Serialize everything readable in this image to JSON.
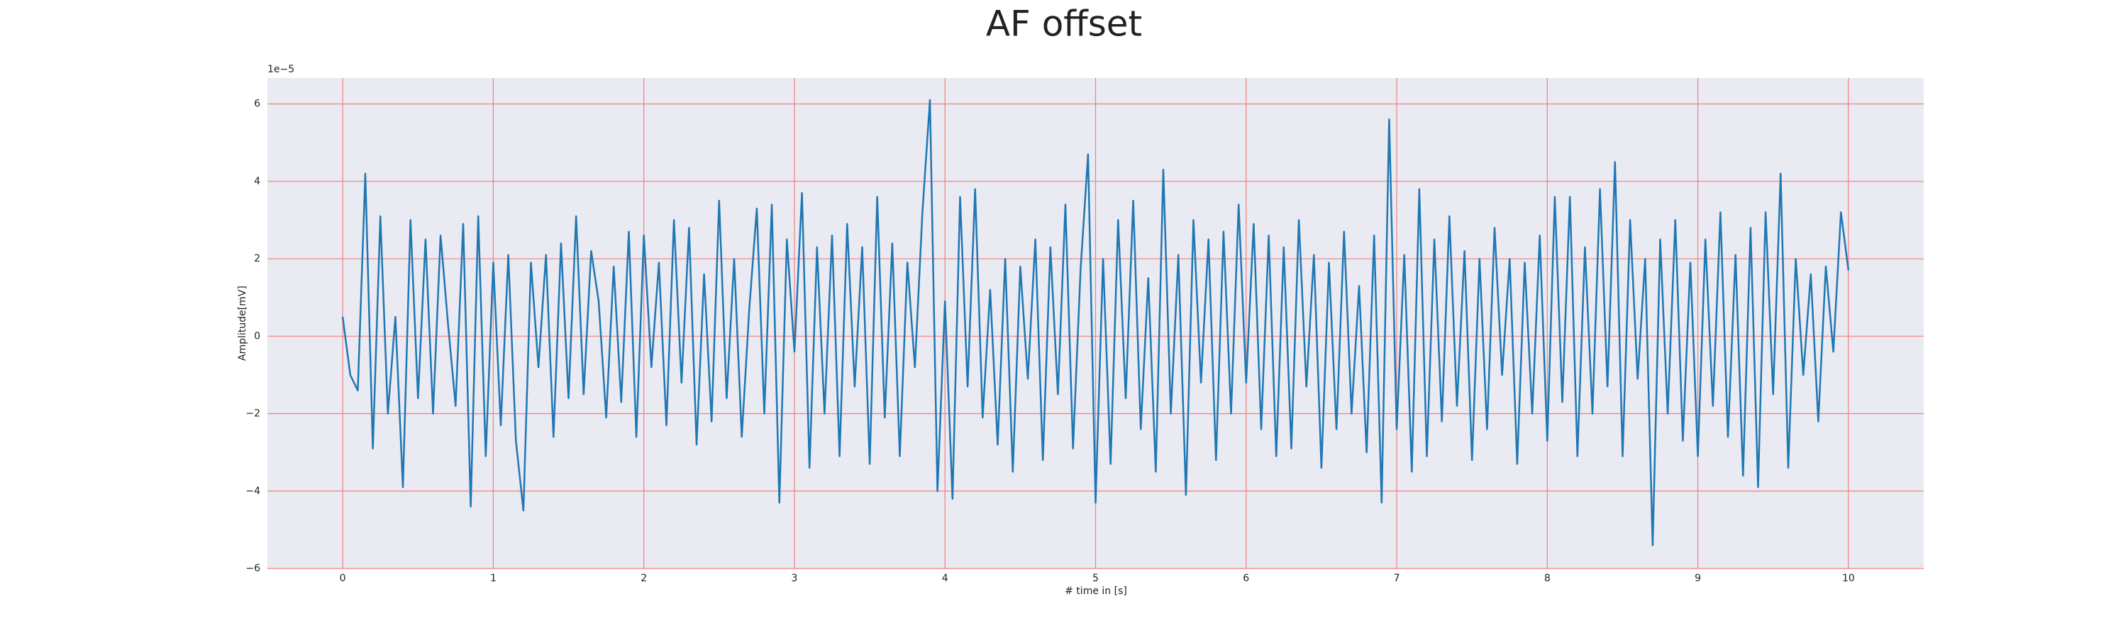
{
  "chart_data": {
    "type": "line",
    "title": "AF offset",
    "x_label": "# time in [s]",
    "y_label": "Amplitude[mV]",
    "y_offset_label": "1e−5",
    "xlim": [
      -0.5,
      10.5
    ],
    "ylim": [
      -6,
      6.67
    ],
    "xticks": [
      0,
      1,
      2,
      3,
      4,
      5,
      6,
      7,
      8,
      9,
      10
    ],
    "yticks": [
      {
        "value": -6,
        "label": "−6"
      },
      {
        "value": -4,
        "label": "−4"
      },
      {
        "value": -2,
        "label": "−2"
      },
      0,
      2,
      4,
      6
    ],
    "grid": true,
    "grid_color": "#f08080",
    "background": "#eaeaf2",
    "x": [
      0,
      0.05,
      0.1,
      0.15,
      0.2,
      0.25,
      0.3,
      0.35,
      0.4,
      0.45,
      0.5,
      0.55,
      0.6,
      0.65,
      0.7,
      0.75,
      0.8,
      0.85,
      0.9,
      0.95,
      1,
      1.05,
      1.1,
      1.15,
      1.2,
      1.25,
      1.3,
      1.35,
      1.4,
      1.45,
      1.5,
      1.55,
      1.6,
      1.65,
      1.7,
      1.75,
      1.8,
      1.85,
      1.9,
      1.95,
      2,
      2.05,
      2.1,
      2.15,
      2.2,
      2.25,
      2.3,
      2.35,
      2.4,
      2.45,
      2.5,
      2.55,
      2.6,
      2.65,
      2.7,
      2.75,
      2.8,
      2.85,
      2.9,
      2.95,
      3,
      3.05,
      3.1,
      3.15,
      3.2,
      3.25,
      3.3,
      3.35,
      3.4,
      3.45,
      3.5,
      3.55,
      3.6,
      3.65,
      3.7,
      3.75,
      3.8,
      3.85,
      3.9,
      3.95,
      4,
      4.05,
      4.1,
      4.15,
      4.2,
      4.25,
      4.3,
      4.35,
      4.4,
      4.45,
      4.5,
      4.55,
      4.6,
      4.65,
      4.7,
      4.75,
      4.8,
      4.85,
      4.9,
      4.95,
      5,
      5.05,
      5.1,
      5.15,
      5.2,
      5.25,
      5.3,
      5.35,
      5.4,
      5.45,
      5.5,
      5.55,
      5.6,
      5.65,
      5.7,
      5.75,
      5.8,
      5.85,
      5.9,
      5.95,
      6,
      6.05,
      6.1,
      6.15,
      6.2,
      6.25,
      6.3,
      6.35,
      6.4,
      6.45,
      6.5,
      6.55,
      6.6,
      6.65,
      6.7,
      6.75,
      6.8,
      6.85,
      6.9,
      6.95,
      7,
      7.05,
      7.1,
      7.15,
      7.2,
      7.25,
      7.3,
      7.35,
      7.4,
      7.45,
      7.5,
      7.55,
      7.6,
      7.65,
      7.7,
      7.75,
      7.8,
      7.85,
      7.9,
      7.95,
      8,
      8.05,
      8.1,
      8.15,
      8.2,
      8.25,
      8.3,
      8.35,
      8.4,
      8.45,
      8.5,
      8.55,
      8.6,
      8.65,
      8.7,
      8.75,
      8.8,
      8.85,
      8.9,
      8.95,
      9,
      9.05,
      9.1,
      9.15,
      9.2,
      9.25,
      9.3,
      9.35,
      9.4,
      9.45,
      9.5,
      9.55,
      9.6,
      9.65,
      9.7,
      9.75,
      9.8,
      9.85,
      9.9,
      9.95,
      10
    ],
    "series": [
      {
        "name": "AF offset",
        "color": "#1f77b4",
        "values": [
          0.5,
          -1.0,
          -1.4,
          4.2,
          -2.9,
          3.1,
          -2.0,
          0.5,
          -3.9,
          3.0,
          -1.6,
          2.5,
          -2.0,
          2.6,
          0.3,
          -1.8,
          2.9,
          -4.4,
          3.1,
          -3.1,
          1.9,
          -2.3,
          2.1,
          -2.7,
          -4.5,
          1.9,
          -0.8,
          2.1,
          -2.6,
          2.4,
          -1.6,
          3.1,
          -1.5,
          2.2,
          0.9,
          -2.1,
          1.8,
          -1.7,
          2.7,
          -2.6,
          2.6,
          -0.8,
          1.9,
          -2.3,
          3.0,
          -1.2,
          2.8,
          -2.8,
          1.6,
          -2.2,
          3.5,
          -1.6,
          2.0,
          -2.6,
          0.7,
          3.3,
          -2.0,
          3.4,
          -4.3,
          2.5,
          -0.4,
          3.7,
          -3.4,
          2.3,
          -2.0,
          2.6,
          -3.1,
          2.9,
          -1.3,
          2.3,
          -3.3,
          3.6,
          -2.1,
          2.4,
          -3.1,
          1.9,
          -0.8,
          3.2,
          6.1,
          -4.0,
          0.9,
          -4.2,
          3.6,
          -1.3,
          3.8,
          -2.1,
          1.2,
          -2.8,
          2.0,
          -3.5,
          1.8,
          -1.1,
          2.5,
          -3.2,
          2.3,
          -1.5,
          3.4,
          -2.9,
          1.7,
          4.7,
          -4.3,
          2.0,
          -3.3,
          3.0,
          -1.6,
          3.5,
          -2.4,
          1.5,
          -3.5,
          4.3,
          -2.0,
          2.1,
          -4.1,
          3.0,
          -1.2,
          2.5,
          -3.2,
          2.7,
          -2.0,
          3.4,
          -1.2,
          2.9,
          -2.4,
          2.6,
          -3.1,
          2.3,
          -2.9,
          3.0,
          -1.3,
          2.1,
          -3.4,
          1.9,
          -2.4,
          2.7,
          -2.0,
          1.3,
          -3.0,
          2.6,
          -4.3,
          5.6,
          -2.4,
          2.1,
          -3.5,
          3.8,
          -3.1,
          2.5,
          -2.2,
          3.1,
          -1.8,
          2.2,
          -3.2,
          2.0,
          -2.4,
          2.8,
          -1.0,
          2.0,
          -3.3,
          1.9,
          -2.0,
          2.6,
          -2.7,
          3.6,
          -1.7,
          3.6,
          -3.1,
          2.3,
          -2.0,
          3.8,
          -1.3,
          4.5,
          -3.1,
          3.0,
          -1.1,
          2.0,
          -5.4,
          2.5,
          -2.0,
          3.0,
          -2.7,
          1.9,
          -3.1,
          2.5,
          -1.8,
          3.2,
          -2.6,
          2.1,
          -3.6,
          2.8,
          -3.9,
          3.2,
          -1.5,
          4.2,
          -3.4,
          2.0,
          -1.0,
          1.6,
          -2.2,
          1.8,
          -0.4,
          3.2,
          1.7
        ]
      }
    ]
  }
}
